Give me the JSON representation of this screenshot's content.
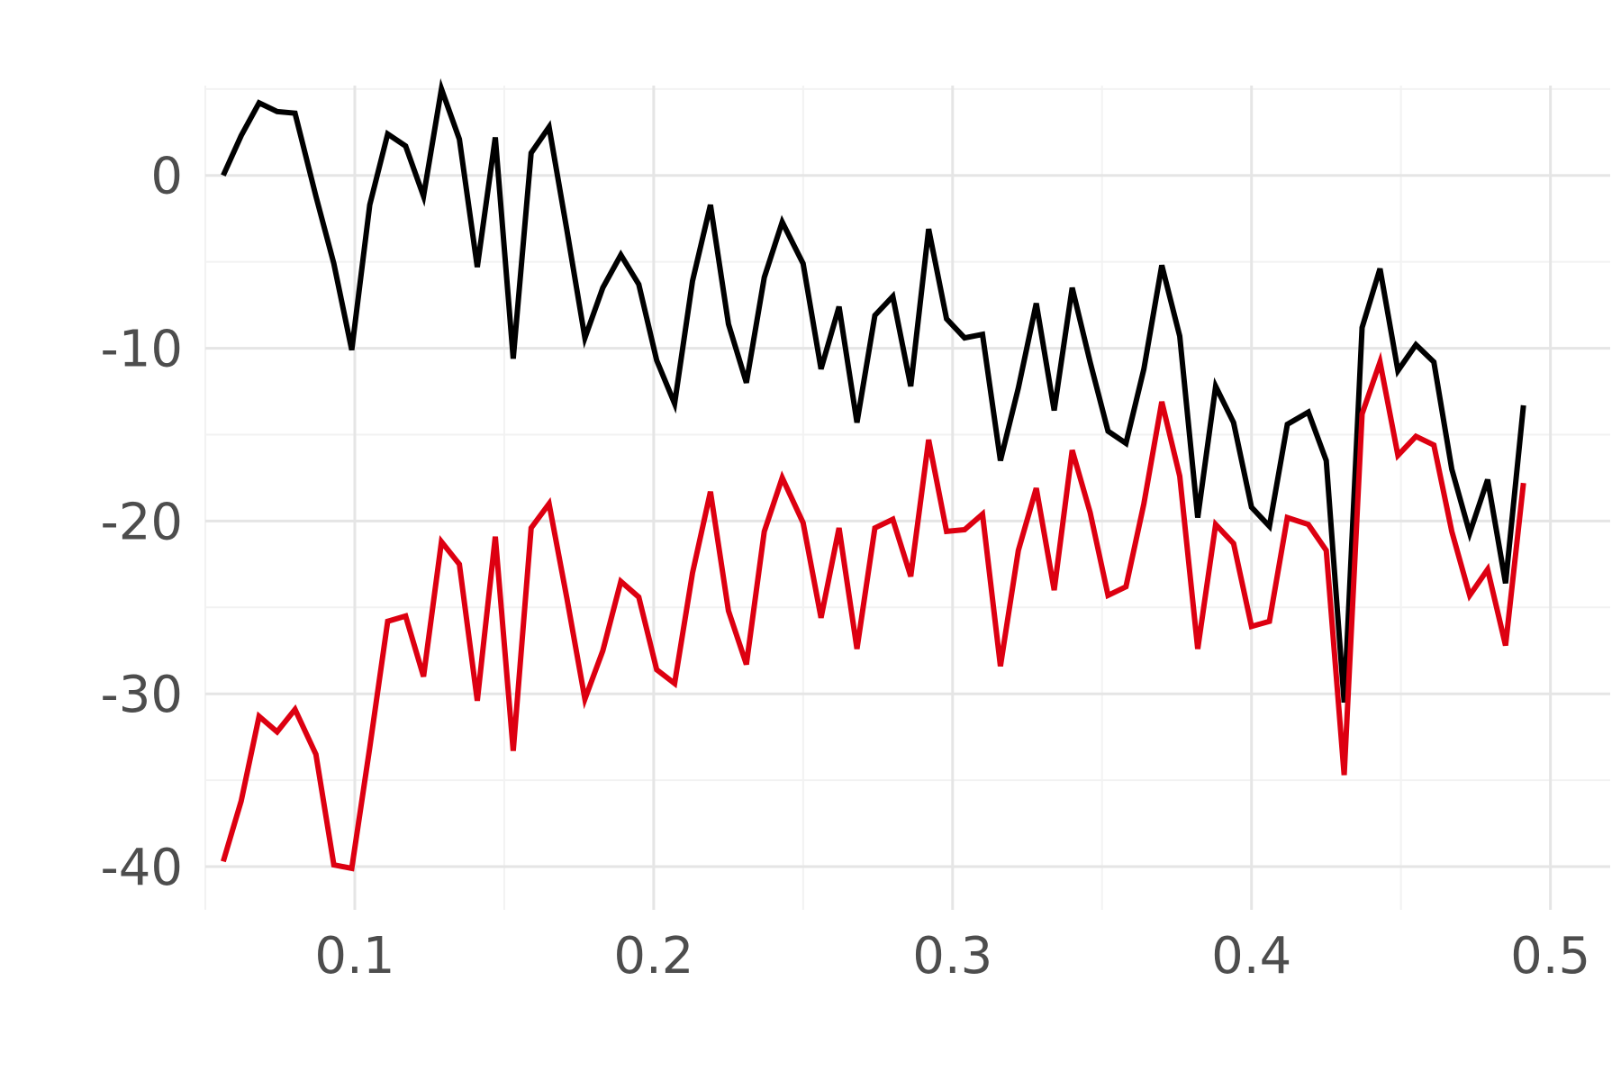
{
  "chart_data": {
    "type": "line",
    "title": "",
    "xlabel": "",
    "ylabel": "",
    "xlim": [
      0.05,
      0.52
    ],
    "ylim": [
      -42.5,
      5.2
    ],
    "grid": true,
    "legend": "none",
    "x_ticks": [
      0.1,
      0.2,
      0.3,
      0.4,
      0.5
    ],
    "x_tick_labels": [
      "0.1",
      "0.2",
      "0.3",
      "0.4",
      "0.5"
    ],
    "y_ticks": [
      0,
      -10,
      -20,
      -30,
      -40
    ],
    "y_tick_labels": [
      "0",
      "-10",
      "-20",
      "-30",
      "-40"
    ],
    "x": [
      0.056,
      0.062,
      0.068,
      0.074,
      0.08,
      0.087,
      0.093,
      0.099,
      0.105,
      0.111,
      0.117,
      0.123,
      0.129,
      0.135,
      0.141,
      0.147,
      0.153,
      0.159,
      0.165,
      0.171,
      0.177,
      0.183,
      0.189,
      0.195,
      0.201,
      0.207,
      0.213,
      0.219,
      0.225,
      0.231,
      0.237,
      0.243,
      0.25,
      0.256,
      0.262,
      0.268,
      0.274,
      0.28,
      0.286,
      0.292,
      0.298,
      0.304,
      0.31,
      0.316,
      0.322,
      0.328,
      0.334,
      0.34,
      0.346,
      0.352,
      0.358,
      0.364,
      0.37,
      0.376,
      0.382,
      0.388,
      0.394,
      0.4,
      0.406,
      0.412,
      0.419,
      0.425,
      0.431,
      0.437,
      0.443,
      0.449,
      0.455,
      0.461,
      0.467,
      0.473,
      0.479,
      0.485,
      0.491
    ],
    "series": [
      {
        "color": "#000000",
        "values": [
          0.0,
          2.3,
          4.2,
          3.7,
          3.6,
          -1.2,
          -5.1,
          -10.1,
          -1.7,
          2.4,
          1.7,
          -1.2,
          5.0,
          2.1,
          -5.3,
          2.2,
          -10.6,
          1.3,
          2.8,
          -3.2,
          -9.4,
          -6.5,
          -4.6,
          -6.3,
          -10.7,
          -13.2,
          -6.1,
          -1.7,
          -8.6,
          -12.0,
          -5.9,
          -2.7,
          -5.1,
          -11.2,
          -7.6,
          -14.3,
          -8.1,
          -7.0,
          -12.2,
          -3.1,
          -8.3,
          -9.4,
          -9.2,
          -16.5,
          -12.3,
          -7.4,
          -13.6,
          -6.5,
          -10.8,
          -14.8,
          -15.5,
          -11.2,
          -5.2,
          -9.3,
          -19.8,
          -12.2,
          -14.3,
          -19.2,
          -20.3,
          -14.4,
          -13.7,
          -16.5,
          -30.5,
          -8.8,
          -5.4,
          -11.3,
          -9.8,
          -10.8,
          -17.0,
          -20.7,
          -17.6,
          -23.6,
          -13.3
        ]
      },
      {
        "color": "#dd0011",
        "values": [
          -39.7,
          -36.2,
          -31.3,
          -32.2,
          -30.9,
          -33.5,
          -39.9,
          -40.1,
          -33.1,
          -25.8,
          -25.5,
          -29.0,
          -21.2,
          -22.5,
          -30.4,
          -20.9,
          -33.3,
          -20.4,
          -19.0,
          -24.5,
          -30.3,
          -27.5,
          -23.5,
          -24.4,
          -28.6,
          -29.4,
          -23.0,
          -18.3,
          -25.2,
          -28.3,
          -20.6,
          -17.5,
          -20.1,
          -25.6,
          -20.4,
          -27.4,
          -20.4,
          -19.9,
          -23.2,
          -15.3,
          -20.6,
          -20.5,
          -19.6,
          -28.4,
          -21.7,
          -18.1,
          -24.0,
          -15.9,
          -19.5,
          -24.3,
          -23.8,
          -19.0,
          -13.1,
          -17.4,
          -27.4,
          -20.2,
          -21.3,
          -26.1,
          -25.8,
          -19.8,
          -20.2,
          -21.7,
          -34.7,
          -13.8,
          -10.8,
          -16.2,
          -15.1,
          -15.6,
          -20.6,
          -24.3,
          -22.8,
          -27.2,
          -17.8
        ]
      }
    ]
  }
}
